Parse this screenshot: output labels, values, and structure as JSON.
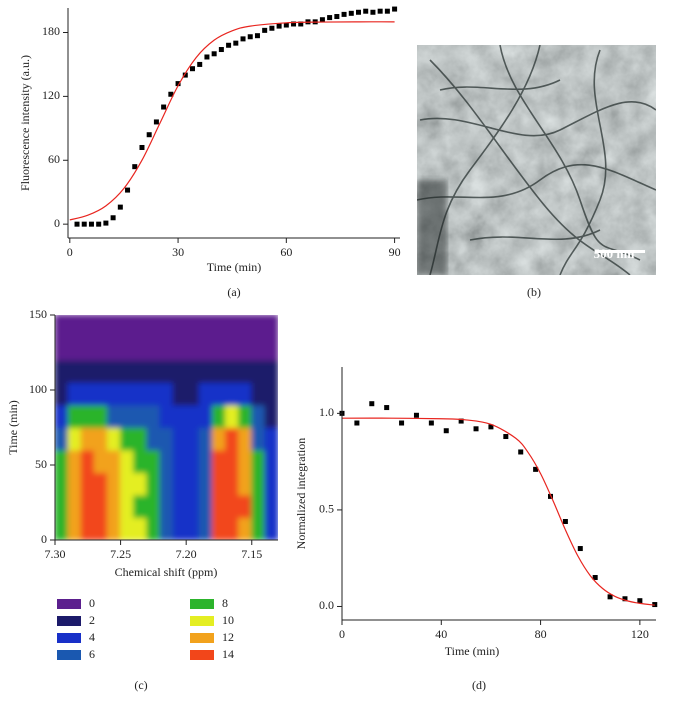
{
  "chart_data": [
    {
      "type": "scatter",
      "caption": "(a)",
      "x_label": "Time (min)",
      "y_label": "Fluorescence intensity (a.u.)",
      "xlim": [
        -0.5,
        91.5
      ],
      "ylim": [
        -13,
        203
      ],
      "xticks": [
        0,
        30,
        60,
        90
      ],
      "yticks": [
        0,
        60,
        120,
        180
      ],
      "series": [
        {
          "style": "markers",
          "color": "#000000",
          "x": [
            2,
            4,
            6,
            8,
            10,
            12,
            14,
            16,
            18,
            20,
            22,
            24,
            26,
            28,
            30,
            32,
            34,
            36,
            38,
            40,
            42,
            44,
            46,
            48,
            50,
            52,
            54,
            56,
            58,
            60,
            62,
            64,
            66,
            68,
            70,
            72,
            74,
            76,
            78,
            80,
            82,
            84,
            86,
            88,
            90
          ],
          "values": [
            0,
            0,
            0,
            0,
            1,
            6,
            16,
            32,
            54,
            72,
            84,
            96,
            110,
            122,
            132,
            140,
            146,
            150,
            157,
            160,
            164,
            168,
            170,
            174,
            176,
            177,
            182,
            184,
            186,
            187,
            188,
            188,
            190,
            190,
            192,
            194,
            195,
            197,
            198,
            199,
            200,
            199,
            200,
            200,
            202
          ]
        },
        {
          "style": "line",
          "color": "#e8251f",
          "x": [
            0,
            5,
            10,
            15,
            20,
            25,
            30,
            35,
            40,
            45,
            50,
            60,
            70,
            80,
            90
          ],
          "values": [
            4.0,
            8.4,
            17.2,
            33.6,
            60.1,
            95,
            130,
            156.4,
            172.8,
            181.6,
            186.0,
            189.1,
            189.8,
            190,
            190
          ]
        }
      ]
    },
    {
      "type": "image",
      "caption": "(b)",
      "scale_bar_label": "500 nm"
    },
    {
      "type": "heatmap",
      "caption": "(c)",
      "x_label": "Chemical shift (ppm)",
      "y_label": "Time (min)",
      "xlim": [
        7.3,
        7.13
      ],
      "ylim": [
        0,
        150
      ],
      "xticks": [
        {
          "value": 7.3,
          "label": "7.30"
        },
        7.25,
        {
          "value": 7.2,
          "label": "7.20"
        },
        7.15
      ],
      "yticks": [
        0,
        50,
        100,
        150
      ],
      "x_edges": [
        7.3,
        7.29,
        7.28,
        7.27,
        7.26,
        7.25,
        7.24,
        7.23,
        7.22,
        7.21,
        7.2,
        7.19,
        7.18,
        7.17,
        7.16,
        7.15,
        7.14,
        7.13
      ],
      "y_edges": [
        0,
        15,
        30,
        45,
        60,
        75,
        90,
        105,
        120,
        135,
        150
      ],
      "z": [
        [
          8,
          12,
          14,
          14,
          12,
          10,
          10,
          8,
          6,
          4,
          4,
          6,
          14,
          14,
          12,
          8,
          4
        ],
        [
          8,
          12,
          14,
          14,
          12,
          10,
          8,
          8,
          6,
          4,
          4,
          6,
          14,
          14,
          14,
          8,
          4
        ],
        [
          8,
          12,
          14,
          14,
          12,
          10,
          10,
          8,
          6,
          4,
          4,
          6,
          14,
          14,
          12,
          8,
          4
        ],
        [
          8,
          12,
          14,
          12,
          12,
          10,
          8,
          8,
          6,
          4,
          4,
          6,
          14,
          14,
          12,
          8,
          4
        ],
        [
          6,
          10,
          12,
          12,
          10,
          8,
          8,
          6,
          6,
          4,
          4,
          6,
          12,
          14,
          12,
          6,
          4
        ],
        [
          4,
          8,
          8,
          8,
          6,
          6,
          6,
          6,
          4,
          4,
          4,
          4,
          8,
          10,
          8,
          6,
          2
        ],
        [
          2,
          4,
          4,
          4,
          4,
          4,
          4,
          4,
          4,
          2,
          2,
          4,
          4,
          4,
          4,
          2,
          2
        ],
        [
          2,
          2,
          2,
          2,
          2,
          2,
          2,
          2,
          2,
          2,
          2,
          2,
          2,
          2,
          2,
          2,
          2
        ],
        [
          0,
          0,
          0,
          0,
          0,
          0,
          0,
          0,
          0,
          0,
          0,
          0,
          0,
          0,
          0,
          0,
          0
        ],
        [
          0,
          0,
          0,
          0,
          0,
          0,
          0,
          0,
          0,
          0,
          0,
          0,
          0,
          0,
          0,
          0,
          0
        ]
      ],
      "levels": [
        0,
        2,
        4,
        6,
        8,
        10,
        12,
        14
      ],
      "level_colors": [
        "#5b1f8e",
        "#1c1a6a",
        "#1830c8",
        "#1a58b0",
        "#2cb42c",
        "#e4ee22",
        "#f2a21c",
        "#f2461a"
      ]
    },
    {
      "type": "scatter",
      "caption": "(d)",
      "x_label": "Time (min)",
      "y_label": "Normalized integration",
      "xlim": [
        0,
        126.5
      ],
      "ylim": [
        -0.07,
        1.24
      ],
      "xticks": [
        0,
        40,
        80,
        120
      ],
      "yticks": [
        {
          "value": 0,
          "label": "0.0"
        },
        0.5,
        {
          "value": 1,
          "label": "1.0"
        }
      ],
      "series": [
        {
          "style": "markers",
          "color": "#000000",
          "x": [
            0,
            6,
            12,
            18,
            24,
            30,
            36,
            42,
            48,
            54,
            60,
            66,
            72,
            78,
            84,
            90,
            96,
            102,
            108,
            114,
            120,
            126
          ],
          "values": [
            1.0,
            0.95,
            1.05,
            1.03,
            0.95,
            0.99,
            0.95,
            0.91,
            0.96,
            0.92,
            0.93,
            0.88,
            0.8,
            0.71,
            0.57,
            0.44,
            0.3,
            0.15,
            0.05,
            0.04,
            0.03,
            0.01
          ]
        },
        {
          "style": "line",
          "color": "#e8251f",
          "x": [
            0,
            20,
            40,
            50,
            60,
            70,
            75,
            80,
            85,
            90,
            95,
            100,
            105,
            110,
            115,
            120,
            126
          ],
          "values": [
            0.975,
            0.975,
            0.972,
            0.966,
            0.943,
            0.871,
            0.797,
            0.688,
            0.548,
            0.397,
            0.262,
            0.16,
            0.093,
            0.052,
            0.029,
            0.016,
            0.007
          ]
        }
      ]
    }
  ]
}
